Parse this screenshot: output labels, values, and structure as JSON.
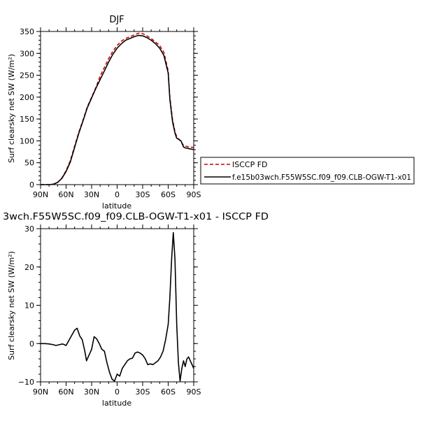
{
  "chart_data": [
    {
      "type": "line",
      "title": "DJF",
      "xlabel": "latitude",
      "ylabel": "Surf clearsky net SW (W/m²)",
      "xlim": [
        90,
        -90
      ],
      "ylim": [
        0,
        350
      ],
      "xticks": [
        90,
        60,
        30,
        0,
        -30,
        -60,
        -90
      ],
      "xtick_labels": [
        "90N",
        "60N",
        "30N",
        "0",
        "30S",
        "60S",
        "90S"
      ],
      "yticks": [
        0,
        50,
        100,
        150,
        200,
        250,
        300,
        350
      ],
      "ytick_labels": [
        "0",
        "50",
        "100",
        "150",
        "200",
        "250",
        "300",
        "350"
      ],
      "legend": "right",
      "series": [
        {
          "name": "ISCCP FD",
          "color": "#cc0000",
          "dash": "dashed",
          "x": [
            90,
            85,
            80,
            75,
            70,
            65,
            60,
            55,
            50,
            45,
            40,
            35,
            30,
            25,
            20,
            15,
            10,
            5,
            0,
            -5,
            -10,
            -15,
            -20,
            -25,
            -30,
            -35,
            -40,
            -45,
            -50,
            -55,
            -60,
            -62,
            -65,
            -68,
            -70,
            -72,
            -75,
            -78,
            -80,
            -85,
            -90
          ],
          "values": [
            0,
            0,
            0,
            1,
            5,
            15,
            32,
            55,
            88,
            120,
            148,
            178,
            200,
            222,
            248,
            268,
            288,
            305,
            318,
            328,
            334,
            338,
            342,
            346,
            345,
            340,
            334,
            326,
            318,
            302,
            260,
            200,
            150,
            120,
            110,
            105,
            98,
            90,
            88,
            86,
            85
          ]
        },
        {
          "name": "f.e15b03wch.F55W5SC.f09_f09.CLB-OGW-T1-x01",
          "color": "#000000",
          "dash": "solid",
          "x": [
            90,
            85,
            80,
            75,
            70,
            65,
            60,
            55,
            50,
            45,
            40,
            35,
            30,
            25,
            20,
            15,
            10,
            5,
            0,
            -5,
            -10,
            -15,
            -20,
            -25,
            -30,
            -35,
            -40,
            -45,
            -50,
            -55,
            -60,
            -62,
            -65,
            -68,
            -70,
            -72,
            -75,
            -78,
            -80,
            -85,
            -90
          ],
          "values": [
            0,
            0,
            0,
            1,
            5,
            14,
            30,
            52,
            85,
            118,
            146,
            176,
            198,
            220,
            240,
            260,
            280,
            298,
            312,
            322,
            330,
            334,
            338,
            341,
            340,
            336,
            330,
            322,
            312,
            295,
            255,
            195,
            145,
            118,
            106,
            104,
            100,
            86,
            84,
            82,
            80
          ]
        }
      ]
    },
    {
      "type": "line",
      "title": "3wch.F55W5SC.f09_f09.CLB-OGW-T1-x01 - ISCCP FD",
      "xlabel": "latitude",
      "ylabel": "Surf clearsky net SW (W/m²)",
      "xlim": [
        90,
        -90
      ],
      "ylim": [
        -10,
        30
      ],
      "xticks": [
        90,
        60,
        30,
        0,
        -30,
        -60,
        -90
      ],
      "xtick_labels": [
        "90N",
        "60N",
        "30N",
        "0",
        "30S",
        "60S",
        "90S"
      ],
      "yticks": [
        -10,
        0,
        10,
        20,
        30
      ],
      "ytick_labels": [
        "−10",
        "0",
        "10",
        "20",
        "30"
      ],
      "series": [
        {
          "color": "#000000",
          "x": [
            90,
            85,
            80,
            75,
            72,
            68,
            64,
            60,
            55,
            50,
            47,
            44,
            41,
            38,
            36,
            34,
            32,
            30,
            27,
            24,
            21,
            18,
            15,
            12,
            9,
            6,
            3,
            0,
            -3,
            -6,
            -9,
            -12,
            -15,
            -18,
            -21,
            -24,
            -27,
            -30,
            -33,
            -36,
            -39,
            -42,
            -45,
            -48,
            -51,
            -54,
            -57,
            -60,
            -62,
            -64,
            -66,
            -68,
            -70,
            -72,
            -74,
            -76,
            -78,
            -80,
            -82,
            -84,
            -86,
            -88,
            -90
          ],
          "values": [
            0,
            0,
            -0.1,
            -0.3,
            -0.5,
            -0.3,
            -0.1,
            -0.5,
            1.5,
            3.5,
            4.0,
            2.0,
            1.0,
            -2.0,
            -4.5,
            -3.5,
            -2.5,
            -1.5,
            1.8,
            1.2,
            0,
            -1.5,
            -2.0,
            -5.0,
            -7.5,
            -9.3,
            -9.8,
            -8.0,
            -8.5,
            -6.5,
            -5.5,
            -4.5,
            -4.0,
            -3.8,
            -2.5,
            -2.2,
            -2.5,
            -3.0,
            -4.0,
            -5.5,
            -5.3,
            -5.5,
            -5.0,
            -4.5,
            -3.5,
            -2.0,
            1.0,
            5.0,
            12.0,
            22.0,
            29.0,
            22.0,
            5.0,
            -5.0,
            -9.8,
            -6.5,
            -4.5,
            -6.0,
            -4.0,
            -3.5,
            -4.5,
            -5.5,
            -6.5
          ]
        }
      ]
    }
  ]
}
